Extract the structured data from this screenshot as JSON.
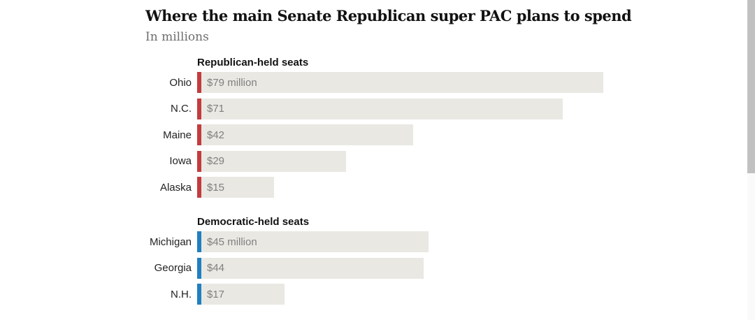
{
  "chart_data": {
    "type": "bar",
    "orientation": "horizontal",
    "title": "Where the main Senate Republican super PAC plans to spend",
    "subtitle": "In millions",
    "unit": "millions of dollars",
    "value_range": [
      0,
      79
    ],
    "grid": false,
    "legend": "none",
    "groups": [
      {
        "id": "republican-held",
        "header": "Republican-held seats",
        "accent_color": "#c23b3e",
        "rows": [
          {
            "label": "Ohio",
            "value": 79,
            "value_label": "$79 million"
          },
          {
            "label": "N.C.",
            "value": 71,
            "value_label": "$71"
          },
          {
            "label": "Maine",
            "value": 42,
            "value_label": "$42"
          },
          {
            "label": "Iowa",
            "value": 29,
            "value_label": "$29"
          },
          {
            "label": "Alaska",
            "value": 15,
            "value_label": "$15"
          }
        ]
      },
      {
        "id": "democratic-held",
        "header": "Democratic-held seats",
        "accent_color": "#1e80c0",
        "rows": [
          {
            "label": "Michigan",
            "value": 45,
            "value_label": "$45 million"
          },
          {
            "label": "Georgia",
            "value": 44,
            "value_label": "$44"
          },
          {
            "label": "N.H.",
            "value": 17,
            "value_label": "$17"
          }
        ]
      }
    ],
    "colors": {
      "bar_fill": "#e9e8e3",
      "value_text": "#7f7f7f",
      "label_text": "#222222",
      "title_text": "#121212",
      "subtitle_text": "#6e6e6e",
      "republican_accent": "#c23b3e",
      "democratic_accent": "#1e80c0"
    }
  }
}
